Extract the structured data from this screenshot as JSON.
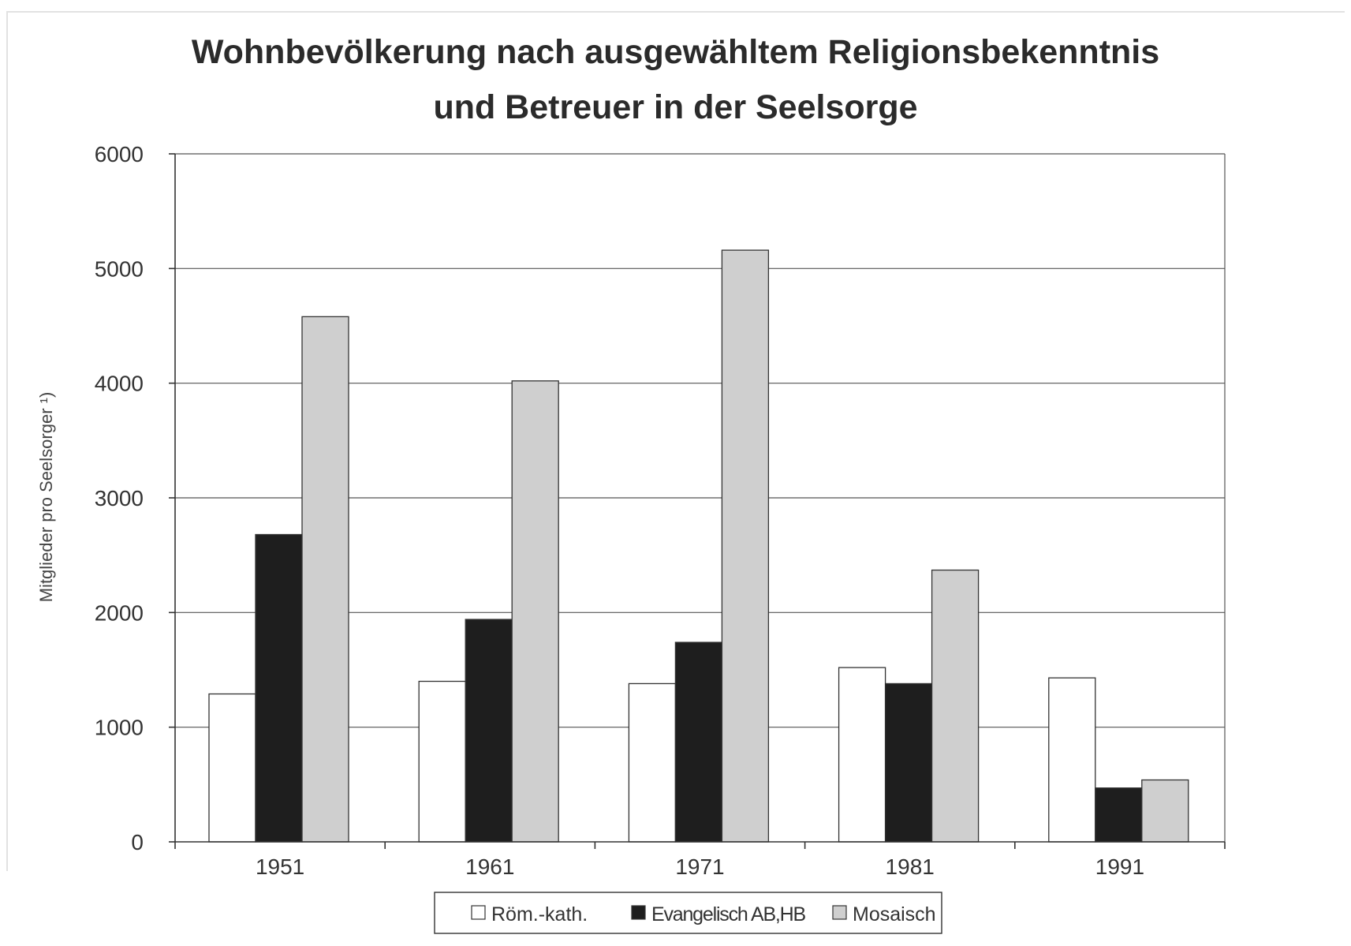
{
  "chart_data": {
    "type": "bar",
    "title_lines": [
      "Wohnbevölkerung nach ausgewähltem Religionsbekenntnis",
      "und Betreuer in der Seelsorge"
    ],
    "xlabel": "",
    "ylabel": "Mitglieder pro Seelsorger ¹)",
    "categories": [
      "1951",
      "1961",
      "1971",
      "1981",
      "1991"
    ],
    "ylim": [
      0,
      6000
    ],
    "yticks": [
      0,
      1000,
      2000,
      3000,
      4000,
      5000,
      6000
    ],
    "grid": true,
    "legend_position": "bottom-center",
    "series": [
      {
        "name": "Röm.-kath.",
        "color": "#ffffff",
        "values": [
          1290,
          1400,
          1380,
          1520,
          1430
        ]
      },
      {
        "name": "Evangelisch AB,HB",
        "color": "#1e1e1e",
        "values": [
          2680,
          1940,
          1740,
          1380,
          470
        ]
      },
      {
        "name": "Mosaisch",
        "color": "#cfcfcf",
        "values": [
          4580,
          4020,
          5160,
          2370,
          540
        ]
      }
    ]
  }
}
